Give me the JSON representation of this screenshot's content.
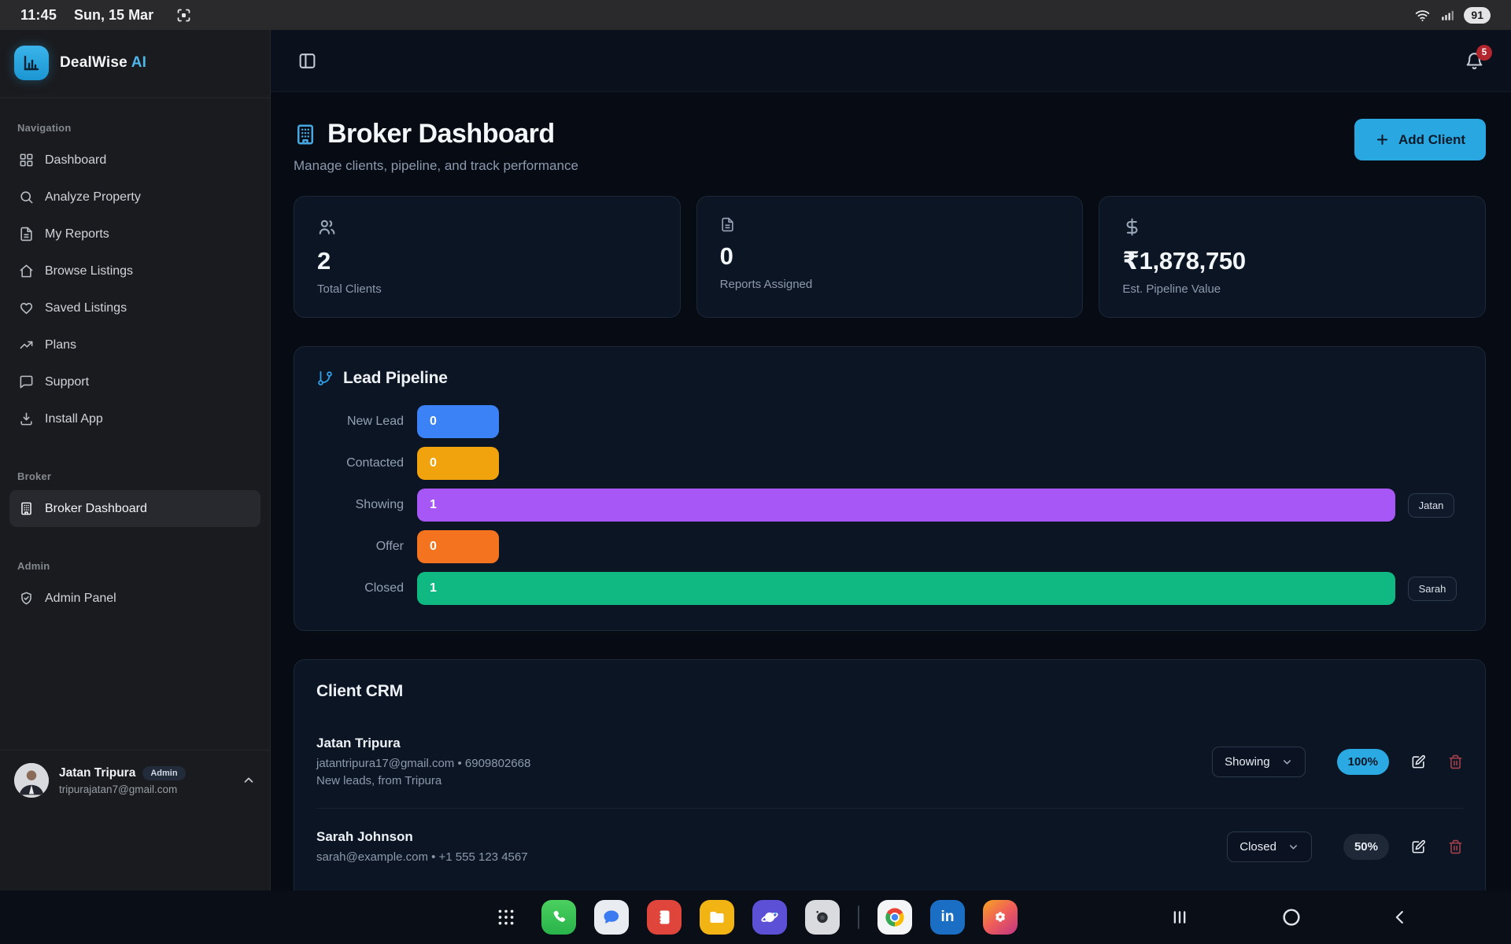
{
  "status_bar": {
    "time": "11:45",
    "date": "Sun, 15 Mar",
    "battery": "91"
  },
  "sidebar": {
    "brand": {
      "name": "DealWise",
      "accent": "AI"
    },
    "sections": [
      {
        "label": "Navigation",
        "items": [
          {
            "icon": "dashboard-icon",
            "label": "Dashboard"
          },
          {
            "icon": "search-icon",
            "label": "Analyze Property"
          },
          {
            "icon": "file-text-icon",
            "label": "My Reports"
          },
          {
            "icon": "home-icon",
            "label": "Browse Listings"
          },
          {
            "icon": "heart-icon",
            "label": "Saved Listings"
          },
          {
            "icon": "trending-up-icon",
            "label": "Plans"
          },
          {
            "icon": "message-icon",
            "label": "Support"
          },
          {
            "icon": "download-icon",
            "label": "Install App"
          }
        ]
      },
      {
        "label": "Broker",
        "items": [
          {
            "icon": "building-icon",
            "label": "Broker Dashboard",
            "active": true
          }
        ]
      },
      {
        "label": "Admin",
        "items": [
          {
            "icon": "shield-check-icon",
            "label": "Admin Panel"
          }
        ]
      }
    ],
    "profile": {
      "name": "Jatan Tripura",
      "role_badge": "Admin",
      "email": "tripurajatan7@gmail.com"
    }
  },
  "topbar": {
    "notification_count": "5"
  },
  "page": {
    "title": "Broker Dashboard",
    "subtitle": "Manage clients, pipeline, and track performance",
    "add_client_label": "Add Client"
  },
  "stats": [
    {
      "icon": "users-icon",
      "value": "2",
      "label": "Total Clients"
    },
    {
      "icon": "file-text-icon",
      "value": "0",
      "label": "Reports Assigned"
    },
    {
      "icon": "dollar-icon",
      "value": "₹1,878,750",
      "label": "Est. Pipeline Value"
    }
  ],
  "pipeline": {
    "title": "Lead Pipeline",
    "stages": [
      {
        "label": "New Lead",
        "count": "0",
        "color": "#3b82f6",
        "width_pct": 7.8,
        "tag": null
      },
      {
        "label": "Contacted",
        "count": "0",
        "color": "#f0a30d",
        "width_pct": 7.8,
        "tag": null
      },
      {
        "label": "Showing",
        "count": "1",
        "color": "#a657f5",
        "width_pct": 93.5,
        "tag": "Jatan"
      },
      {
        "label": "Offer",
        "count": "0",
        "color": "#f4731f",
        "width_pct": 7.8,
        "tag": null
      },
      {
        "label": "Closed",
        "count": "1",
        "color": "#10b981",
        "width_pct": 93.5,
        "tag": "Sarah"
      }
    ]
  },
  "crm": {
    "title": "Client CRM",
    "clients": [
      {
        "name": "Jatan Tripura",
        "contact": "jatantripura17@gmail.com • 6909802668",
        "note": "New leads, from Tripura",
        "stage": "Showing",
        "percent": "100%",
        "percent_variant": "highlight"
      },
      {
        "name": "Sarah Johnson",
        "contact": "sarah@example.com • +1 555 123 4567",
        "note": null,
        "stage": "Closed",
        "percent": "50%",
        "percent_variant": "muted"
      }
    ]
  },
  "dock": {
    "apps": [
      "app-drawer",
      "phone",
      "messages",
      "contacts",
      "my-files",
      "internet",
      "camera",
      "divider",
      "chrome",
      "linkedin",
      "gallery"
    ],
    "nav": [
      "recents",
      "home",
      "back"
    ]
  },
  "colors": {
    "accent_blue": "#29a7e0",
    "badge_red": "#b3262e",
    "pct_highlight": "#2aa9e2"
  }
}
